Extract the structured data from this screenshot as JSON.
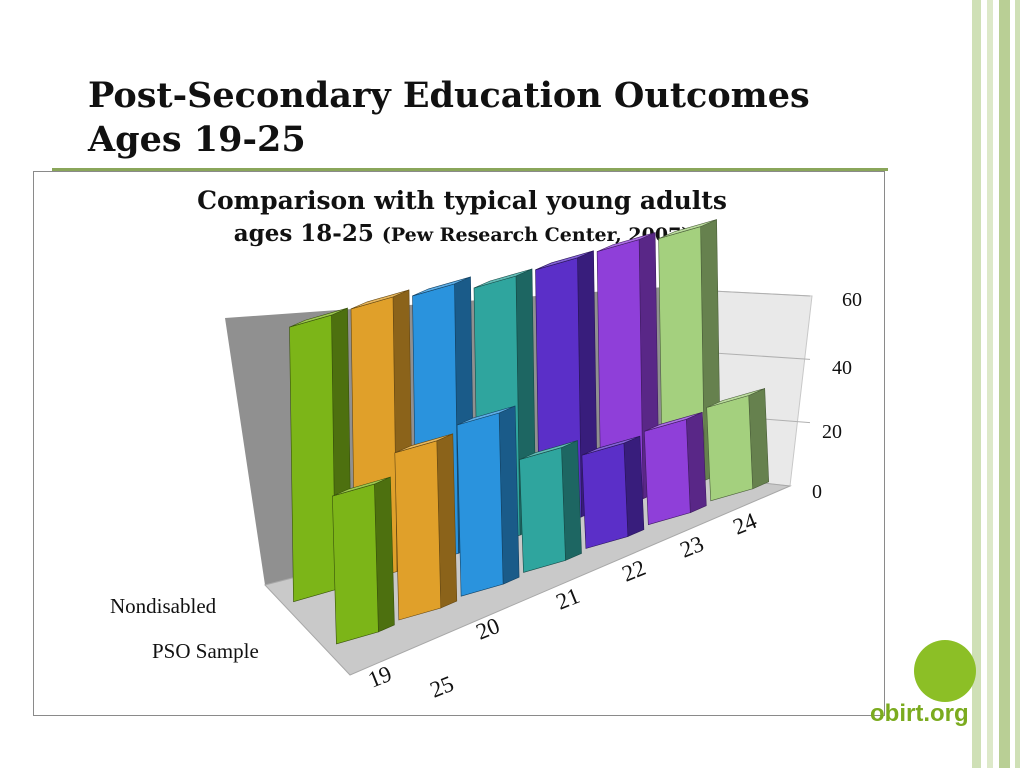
{
  "slide": {
    "title_line1": "Post-Secondary Education Outcomes",
    "title_line2": "Ages 19-25"
  },
  "logo": {
    "text": "obirt.org",
    "color": "#8cbf26"
  },
  "stripe_colors": [
    "#cfe0b6",
    "#dde9c9",
    "#b9cf95"
  ],
  "chart_data": {
    "type": "bar",
    "style": "3d-clustered-column",
    "title_line1": "Comparison with typical young adults",
    "title_line2": "ages 18-25",
    "title_source": "(Pew Research Center, 2007)",
    "categories": [
      "19",
      "20",
      "21",
      "22",
      "23",
      "24",
      "25"
    ],
    "category_colors": [
      "#7cb518",
      "#e0a02a",
      "#2a93dd",
      "#2fa59e",
      "#5b2fc8",
      "#8f3fd9",
      "#a4d07e"
    ],
    "series": [
      {
        "name": "Nondisabled",
        "values": [
          53,
          53,
          52,
          50,
          50,
          50,
          49
        ]
      },
      {
        "name": "PSO Sample",
        "values": [
          38,
          43,
          44,
          29,
          24,
          24,
          24
        ]
      }
    ],
    "yticks": [
      0,
      20,
      40,
      60
    ],
    "ylim": [
      0,
      60
    ],
    "depth_axis_labels": [
      "Nondisabled",
      "PSO Sample"
    ],
    "grid": true
  }
}
